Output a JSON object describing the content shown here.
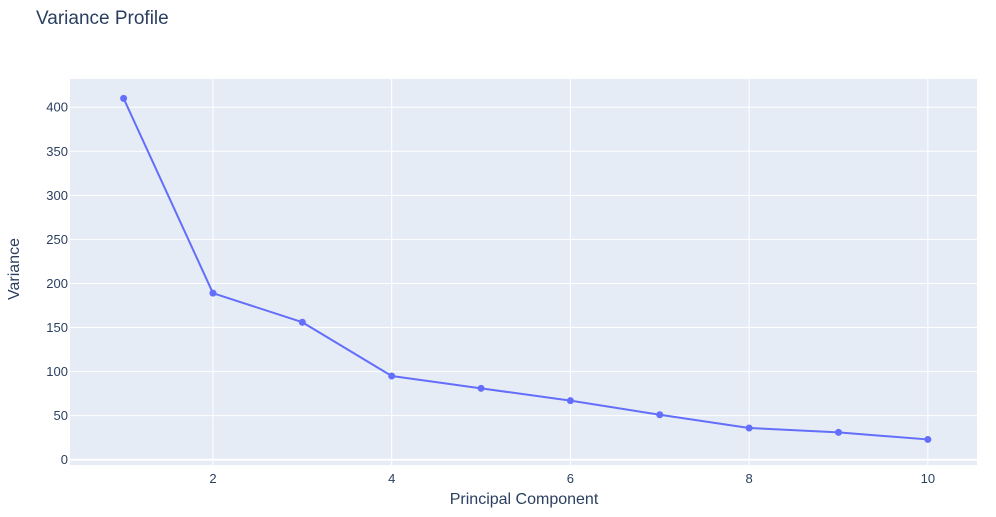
{
  "chart_data": {
    "type": "line",
    "title": "Variance Profile",
    "xlabel": "Principal Component",
    "ylabel": "Variance",
    "x": [
      1,
      2,
      3,
      4,
      5,
      6,
      7,
      8,
      9,
      10
    ],
    "series": [
      {
        "values": [
          410,
          189,
          156,
          95,
          81,
          67,
          51,
          36,
          31,
          23
        ]
      }
    ],
    "xlim": [
      0.4,
      10.55
    ],
    "ylim": [
      -6,
      432
    ],
    "xticks": [
      2,
      4,
      6,
      8,
      10
    ],
    "yticks": [
      0,
      50,
      100,
      150,
      200,
      250,
      300,
      350,
      400
    ],
    "grid": true,
    "mode": "lines+markers"
  },
  "colors": {
    "plot_bg": "#e5ecf6",
    "grid": "#ffffff",
    "line": "#636efa",
    "text": "#2a3f5f"
  }
}
